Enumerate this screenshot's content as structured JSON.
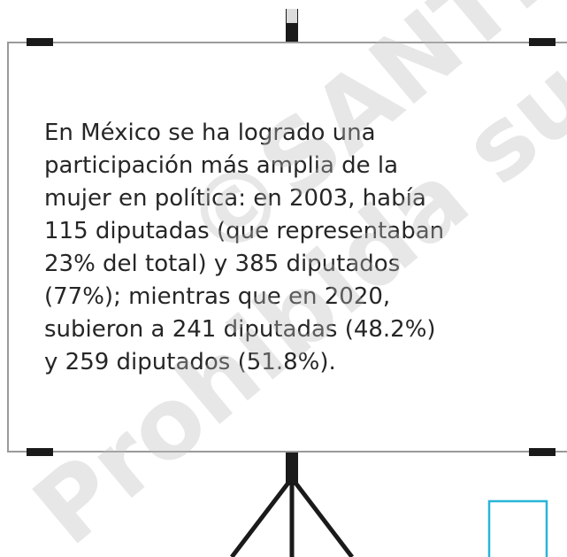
{
  "board": {
    "lines": [
      "En México se ha logrado una",
      "participación más amplia de la",
      "mujer en política: en 2003, había",
      "115 diputadas (que representaban",
      "23% del total) y 385 diputados",
      "(77%); mientras que en 2020,",
      "subieron a 241 diputadas (48.2%)",
      "y 259 diputados (51.8%)."
    ]
  },
  "watermark": {
    "lines": [
      "©SANTILLANA",
      "Prohibida su"
    ]
  }
}
